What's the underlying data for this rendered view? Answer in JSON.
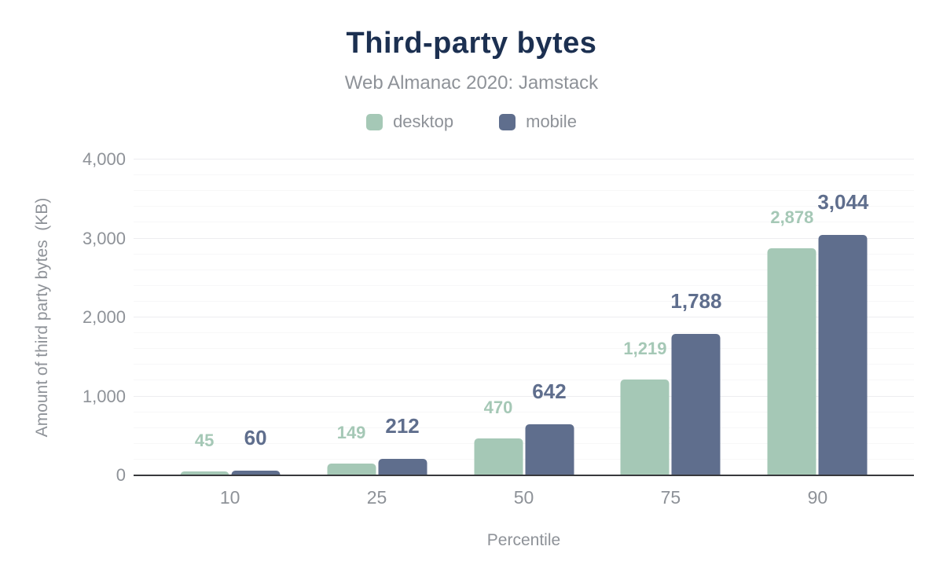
{
  "chart": {
    "title": "Third-party bytes",
    "subtitle": "Web Almanac 2020: Jamstack",
    "x_axis_title": "Percentile",
    "y_axis_title": "Amount of third party bytes  (KB)"
  },
  "chart_data": {
    "type": "bar",
    "title": "Third-party bytes",
    "subtitle": "Web Almanac 2020: Jamstack",
    "categories": [
      "10",
      "25",
      "50",
      "75",
      "90"
    ],
    "series": [
      {
        "name": "desktop",
        "color": "#a5c8b6",
        "values": [
          45,
          149,
          470,
          1219,
          2878
        ],
        "labels": [
          "45",
          "149",
          "470",
          "1,219",
          "2,878"
        ]
      },
      {
        "name": "mobile",
        "color": "#5f6e8d",
        "values": [
          60,
          212,
          642,
          1788,
          3044
        ],
        "labels": [
          "60",
          "212",
          "642",
          "1,788",
          "3,044"
        ]
      }
    ],
    "xlabel": "Percentile",
    "ylabel": "Amount of third party bytes  (KB)",
    "ylim": [
      0,
      4000
    ],
    "y_ticks": [
      0,
      1000,
      2000,
      3000,
      4000
    ],
    "y_tick_labels": [
      "0",
      "1,000",
      "2,000",
      "3,000",
      "4,000"
    ],
    "minor_grid_step": 200,
    "major_grid_step": 1000,
    "grid": true,
    "legend_position": "top",
    "data_labels": true
  },
  "colors": {
    "title_text": "#1c3051",
    "muted_text": "#8e9298",
    "axis_line": "#38393d",
    "minor_gridline": "#f7f7f8",
    "major_gridline": "#ededf0",
    "background": "#ffffff"
  }
}
